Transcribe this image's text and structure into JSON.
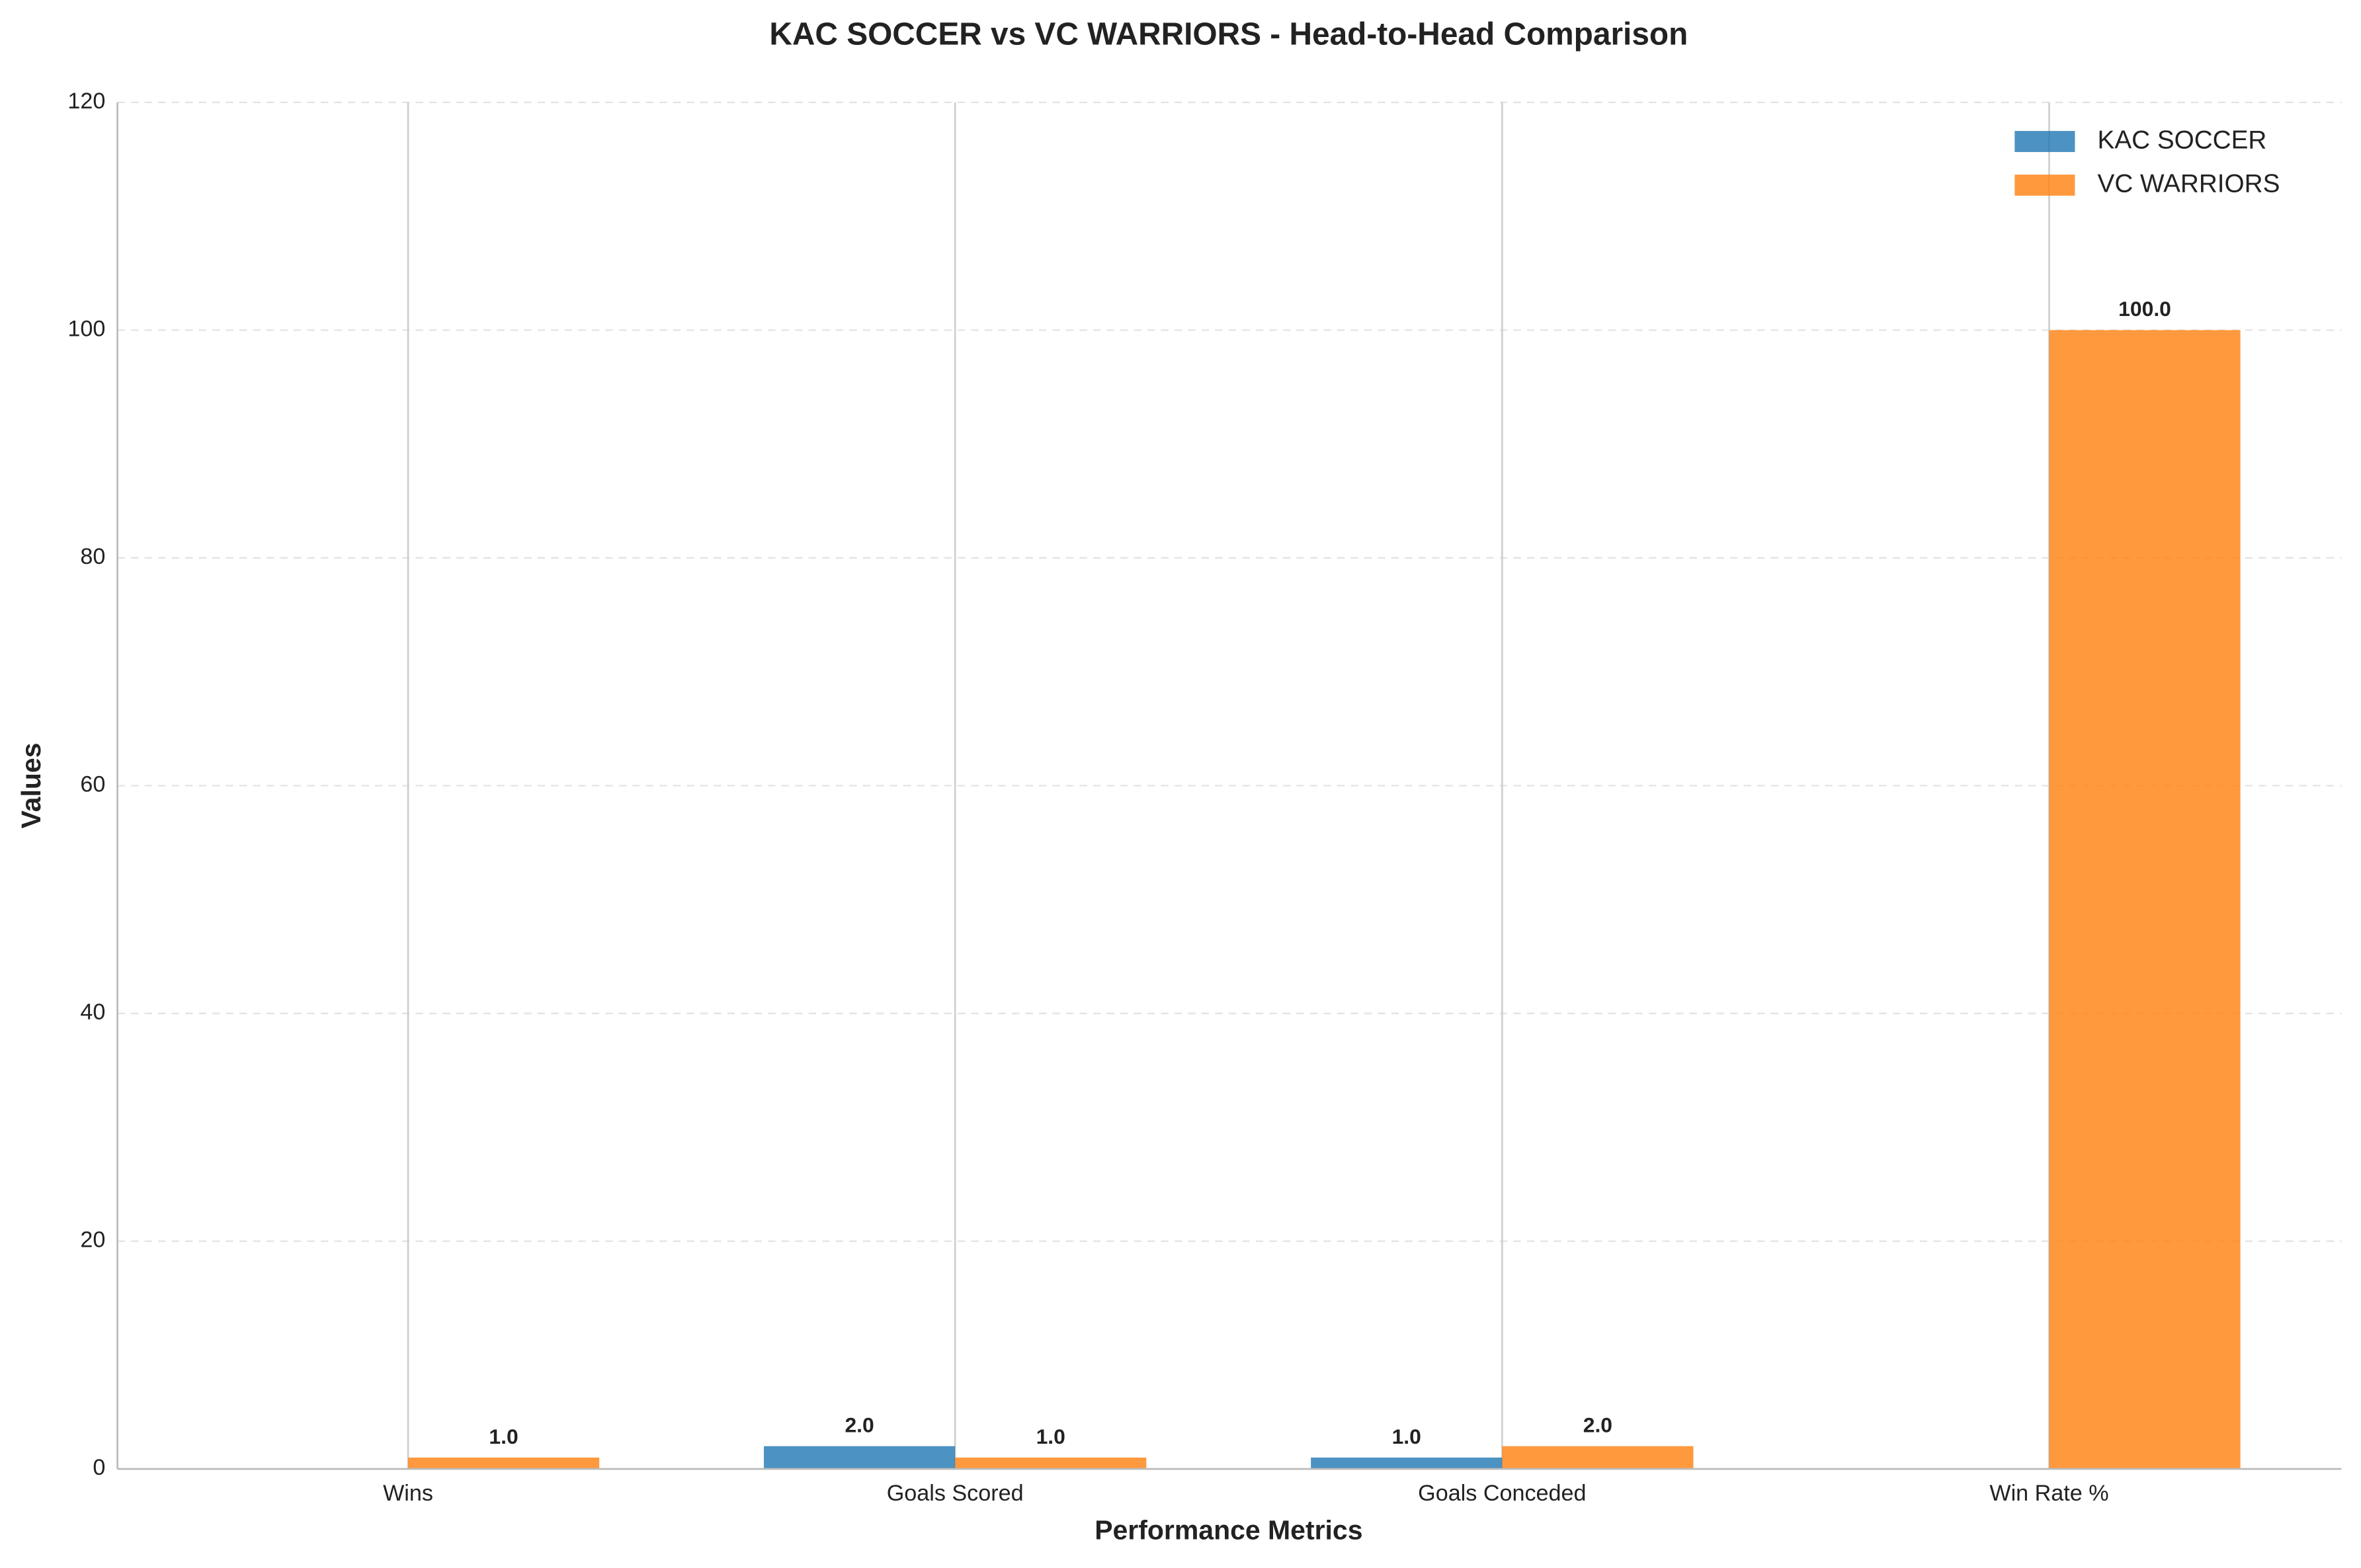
{
  "chart_data": {
    "type": "bar",
    "title": "KAC SOCCER vs VC WARRIORS - Head-to-Head Comparison",
    "x_label": "Performance Metrics",
    "y_label": "Values",
    "categories": [
      "Wins",
      "Goals Scored",
      "Goals Conceded",
      "Win Rate %"
    ],
    "series": [
      {
        "name": "KAC SOCCER",
        "color": "#1f77b4",
        "values": [
          0,
          2,
          1,
          0
        ],
        "value_labels": [
          null,
          "2.0",
          "1.0",
          null
        ]
      },
      {
        "name": "VC WARRIORS",
        "color": "#ff7f0e",
        "values": [
          1,
          1,
          2,
          100
        ],
        "value_labels": [
          "1.0",
          "1.0",
          "2.0",
          "100.0"
        ]
      }
    ],
    "ylim": [
      0,
      120
    ],
    "yticks": [
      0,
      20,
      40,
      60,
      80,
      100,
      120
    ],
    "grid": true,
    "legend": "upper right"
  }
}
